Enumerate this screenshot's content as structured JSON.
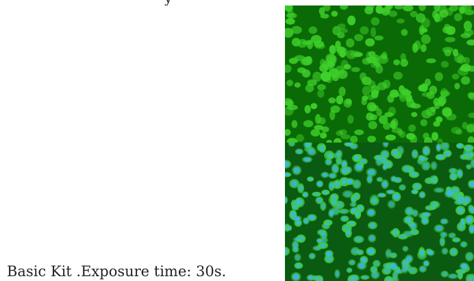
{
  "caption": "Basic Kit .Exposure time: 30s.",
  "colors": {
    "green_background": "#0a6b06",
    "green_cells": "#3fd12a",
    "merge_background": "#0b5a12",
    "merge_nuclei": "#3fb6e6"
  }
}
